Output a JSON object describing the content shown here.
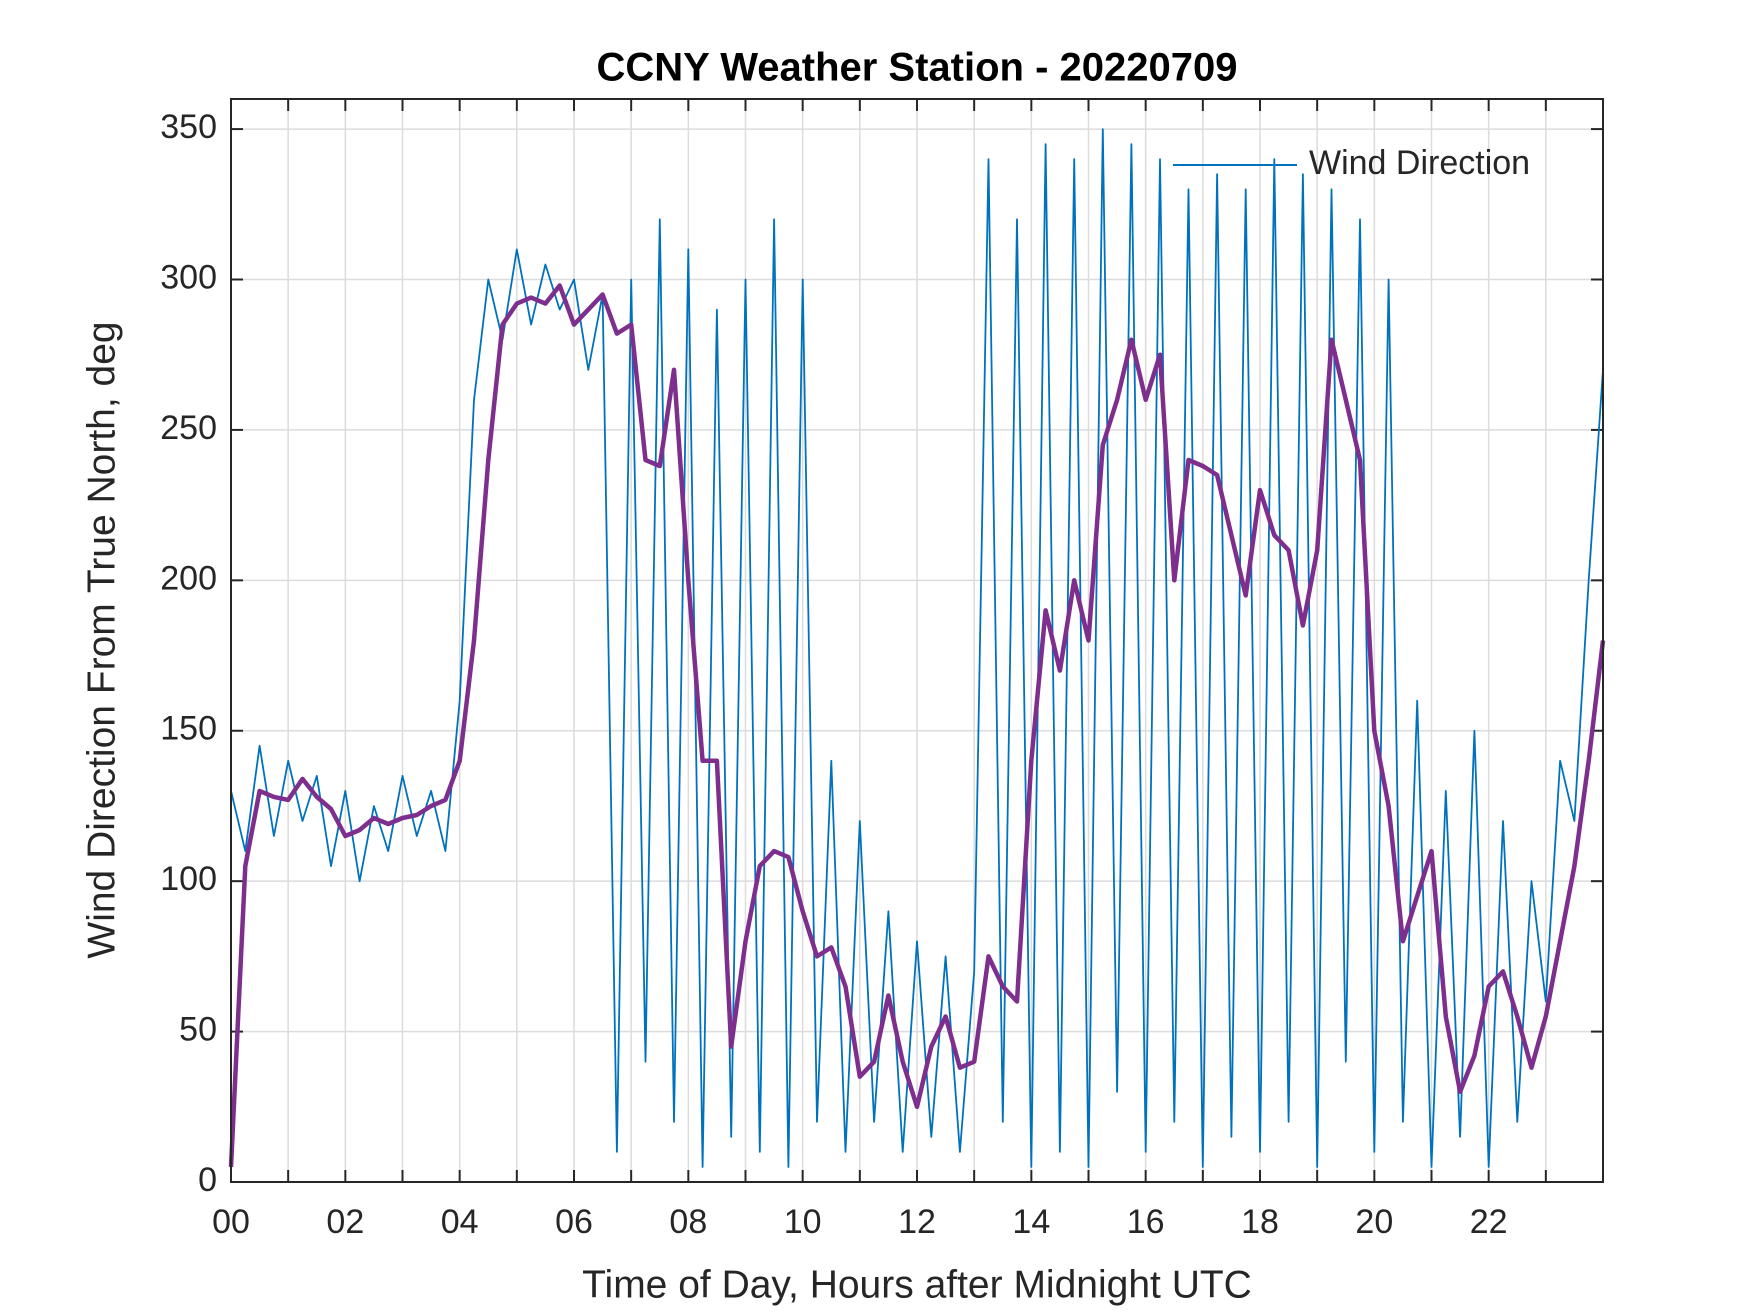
{
  "chart_data": {
    "type": "line",
    "title": "CCNY Weather Station - 20220709",
    "xlabel": "Time of Day, Hours after Midnight UTC",
    "ylabel": "Wind Direction From True North, deg",
    "x": [
      0,
      0.25,
      0.5,
      0.75,
      1,
      1.25,
      1.5,
      1.75,
      2,
      2.25,
      2.5,
      2.75,
      3,
      3.25,
      3.5,
      3.75,
      4,
      4.25,
      4.5,
      4.75,
      5,
      5.25,
      5.5,
      5.75,
      6,
      6.25,
      6.5,
      6.75,
      7,
      7.25,
      7.5,
      7.75,
      8,
      8.25,
      8.5,
      8.75,
      9,
      9.25,
      9.5,
      9.75,
      10,
      10.25,
      10.5,
      10.75,
      11,
      11.25,
      11.5,
      11.75,
      12,
      12.25,
      12.5,
      12.75,
      13,
      13.25,
      13.5,
      13.75,
      14,
      14.25,
      14.5,
      14.75,
      15,
      15.25,
      15.5,
      15.75,
      16,
      16.25,
      16.5,
      16.75,
      17,
      17.25,
      17.5,
      17.75,
      18,
      18.25,
      18.5,
      18.75,
      19,
      19.25,
      19.5,
      19.75,
      20,
      20.25,
      20.5,
      20.75,
      21,
      21.25,
      21.5,
      21.75,
      22,
      22.25,
      22.5,
      22.75,
      23,
      23.25,
      23.5,
      23.75,
      24
    ],
    "series": [
      {
        "name": "Wind Direction",
        "color": "#0072bd",
        "values": [
          130,
          110,
          145,
          115,
          140,
          120,
          135,
          105,
          130,
          100,
          125,
          110,
          135,
          115,
          130,
          110,
          160,
          260,
          300,
          280,
          310,
          285,
          305,
          290,
          300,
          270,
          295,
          10,
          300,
          40,
          320,
          20,
          310,
          5,
          290,
          15,
          300,
          10,
          320,
          5,
          300,
          20,
          140,
          10,
          120,
          20,
          90,
          10,
          80,
          15,
          75,
          10,
          70,
          340,
          20,
          320,
          5,
          345,
          10,
          340,
          5,
          350,
          30,
          345,
          10,
          340,
          20,
          330,
          5,
          335,
          15,
          330,
          10,
          340,
          20,
          335,
          5,
          330,
          40,
          320,
          10,
          300,
          20,
          160,
          5,
          130,
          15,
          150,
          5,
          120,
          20,
          100,
          60,
          140,
          120,
          200,
          270
        ]
      },
      {
        "color": "#7e2f8e",
        "values": [
          5,
          105,
          130,
          128,
          127,
          134,
          128,
          124,
          115,
          117,
          121,
          119,
          121,
          122,
          125,
          127,
          140,
          180,
          240,
          285,
          292,
          294,
          292,
          298,
          285,
          290,
          295,
          282,
          285,
          240,
          238,
          270,
          200,
          140,
          140,
          45,
          80,
          105,
          110,
          108,
          90,
          75,
          78,
          65,
          35,
          40,
          62,
          40,
          25,
          45,
          55,
          38,
          40,
          75,
          65,
          60,
          140,
          190,
          170,
          200,
          180,
          245,
          260,
          280,
          260,
          275,
          200,
          240,
          238,
          235,
          215,
          195,
          230,
          215,
          210,
          185,
          210,
          280,
          260,
          240,
          150,
          125,
          80,
          95,
          110,
          55,
          30,
          42,
          65,
          70,
          55,
          38,
          55,
          80,
          105,
          140,
          180
        ]
      }
    ],
    "xlim": [
      0,
      24
    ],
    "xticks": [
      {
        "value": 0,
        "label": "00"
      },
      {
        "value": 2,
        "label": "02"
      },
      {
        "value": 4,
        "label": "04"
      },
      {
        "value": 6,
        "label": "06"
      },
      {
        "value": 8,
        "label": "08"
      },
      {
        "value": 10,
        "label": "10"
      },
      {
        "value": 12,
        "label": "12"
      },
      {
        "value": 14,
        "label": "14"
      },
      {
        "value": 16,
        "label": "16"
      },
      {
        "value": 18,
        "label": "18"
      },
      {
        "value": 20,
        "label": "20"
      },
      {
        "value": 22,
        "label": "22"
      }
    ],
    "xminorticks": [
      1,
      3,
      5,
      7,
      9,
      11,
      13,
      15,
      17,
      19,
      21,
      23
    ],
    "ylim": [
      0,
      360
    ],
    "yticks": [
      0,
      50,
      100,
      150,
      200,
      250,
      300,
      350
    ],
    "grid": true,
    "legend": "top-right"
  }
}
